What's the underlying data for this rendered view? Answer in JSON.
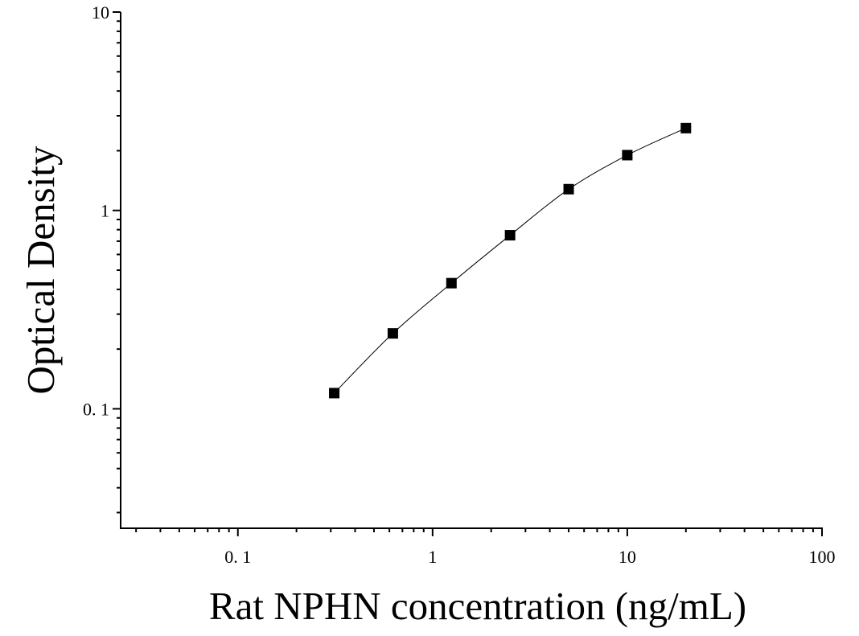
{
  "chart_data": {
    "type": "scatter",
    "xlabel": "Rat NPHN concentration (ng/mL)",
    "ylabel": "Optical Density",
    "x_scale": "log",
    "y_scale": "log",
    "xlim": [
      0.025,
      100
    ],
    "ylim": [
      0.025,
      10
    ],
    "x_tick_labels": [
      "0. 1",
      "1",
      "10",
      "100"
    ],
    "y_tick_labels": [
      "0. 1",
      "1",
      "10"
    ],
    "grid": false,
    "series": [
      {
        "x": [
          0.3125,
          0.625,
          1.25,
          2.5,
          5,
          10,
          20
        ],
        "y": [
          0.12,
          0.24,
          0.43,
          0.75,
          1.28,
          1.9,
          2.6
        ],
        "marker": "square",
        "fit_curve": true
      }
    ],
    "colors": {
      "marker": "#000000",
      "curve": "#000000",
      "axis": "#000000"
    }
  }
}
